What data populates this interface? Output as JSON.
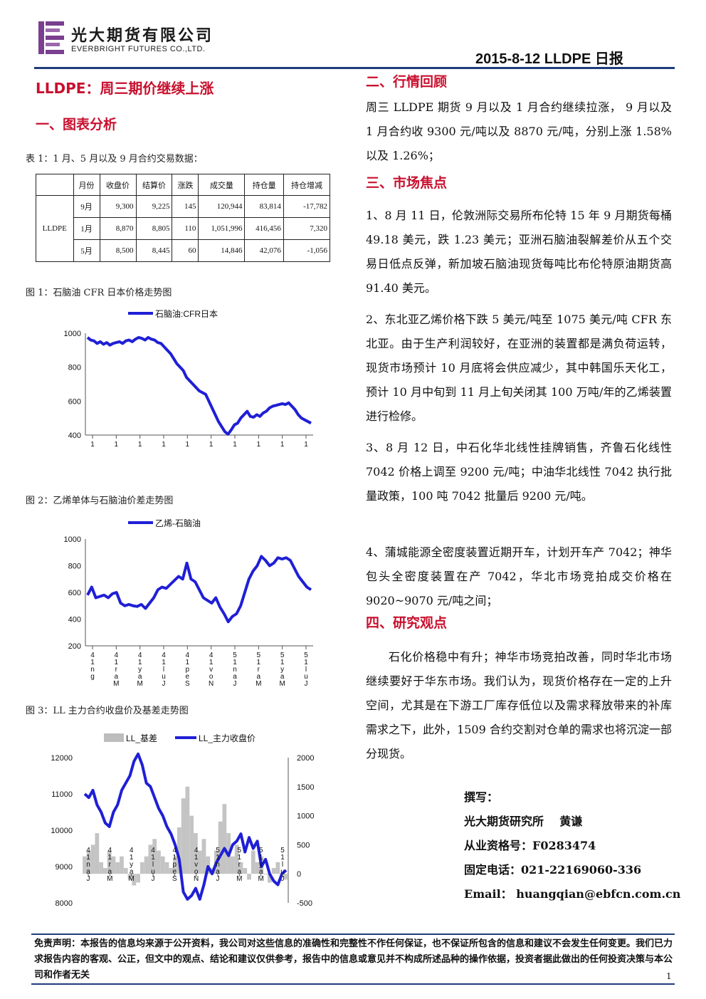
{
  "header": {
    "company_cn": "光大期货有限公司",
    "company_en": "EVERBRIGHT FUTURES CO.,LTD.",
    "report_date": "2015-8-12   LLDPE 日报"
  },
  "left": {
    "main_title": "LLDPE：周三期价继续上涨",
    "section1_title": "一、图表分析",
    "table_caption": "表 1：1 月、5 月以及 9 月合约交易数据：",
    "table": {
      "headers": [
        "",
        "月份",
        "收盘价",
        "结算价",
        "涨跌",
        "成交量",
        "持仓量",
        "持仓增减"
      ],
      "product": "LLDPE",
      "rows": [
        [
          "9月",
          "9,300",
          "9,225",
          "145",
          "120,944",
          "83,814",
          "-17,782"
        ],
        [
          "1月",
          "8,870",
          "8,805",
          "110",
          "1,051,996",
          "416,456",
          "7,320"
        ],
        [
          "5月",
          "8,500",
          "8,445",
          "60",
          "14,846",
          "42,076",
          "-1,056"
        ]
      ]
    },
    "fig1_caption": "图 1：石脑油 CFR 日本价格走势图",
    "fig2_caption": "图 2：乙烯单体与石脑油价差走势图",
    "fig3_caption": "图 3：LL 主力合约收盘价及基差走势图"
  },
  "right": {
    "sec2_title": "二、行情回顾",
    "sec2_text": "周三 LLDPE 期货 9 月以及 1 月合约继续拉涨， 9 月以及 1 月合约收 9300 元/吨以及 8870 元/吨，分别上涨 1.58%以及 1.26%；",
    "sec3_title": "三、市场焦点",
    "sec3_items": [
      "1、8 月 11 日，伦敦洲际交易所布伦特 15 年 9 月期货每桶 49.18 美元，跌 1.23 美元；亚洲石脑油裂解差价从五个交易日低点反弹，新加坡石脑油现货每吨比布伦特原油期货高 91.40 美元。",
      "2、东北亚乙烯价格下跌 5 美元/吨至 1075 美元/吨 CFR 东北亚。由于生产利润较好，在亚洲的装置都是满负荷运转，现货市场预计 10 月底将会供应减少，其中韩国乐天化工，预计 10 月中旬到 11 月上旬关闭其 100 万吨/年的乙烯装置进行检修。",
      "3、8 月 12 日，中石化华北线性挂牌销售，齐鲁石化线性 7042 价格上调至 9200 元/吨；中油华北线性 7042 执行批量政策，100 吨 7042 批量后 9200 元/吨。",
      "4、蒲城能源全密度装置近期开车，计划开车产 7042；神华包头全密度装置在产 7042，华北市场竞拍成交价格在 9020~9070 元/吨之间；"
    ],
    "sec4_title": "四、研究观点",
    "sec4_text": "石化价格稳中有升；神华市场竞拍改善，同时华北市场继续要好于华东市场。我们认为，现货价格存在一定的上升空间，尤其是在下游工厂库存低位以及需求释放带来的补库需求之下，此外，1509 合约交割对仓单的需求也将沉淀一部分现货。",
    "author_label": "撰写：",
    "author_line": "光大期货研究所    黄谦",
    "license": "从业资格号：F0283474",
    "phone": "固定电话：021-22169060-336",
    "email": "Email： huangqian@ebfcn.com.cn"
  },
  "footer": {
    "disclaimer": "免责声明：本报告的信息均来源于公开资料，我公司对这些信息的准确性和完整性不作任何保证，也不保证所包含的信息和建议不会发生任何变更。我们已力求报告内容的客观、公正，但文中的观点、结论和建议仅供参考，报告中的信息或意见并不构成所述品种的操作依据，投资者据此做出的任何投资决策与本公司和作者无关",
    "page": "1"
  },
  "chart_data": [
    {
      "type": "line",
      "legend": [
        "石脑油:CFR日本"
      ],
      "ylim": [
        400,
        1000
      ],
      "yticks": [
        400,
        600,
        800,
        1000
      ],
      "color": "#1f1fd6",
      "series": [
        {
          "name": "石脑油:CFR日本",
          "values": [
            975,
            960,
            955,
            940,
            950,
            935,
            945,
            930,
            940,
            945,
            950,
            940,
            955,
            960,
            950,
            965,
            975,
            970,
            960,
            975,
            965,
            960,
            945,
            940,
            920,
            900,
            880,
            850,
            820,
            800,
            780,
            740,
            720,
            700,
            680,
            660,
            650,
            640,
            600,
            560,
            520,
            480,
            450,
            420,
            405,
            430,
            460,
            470,
            500,
            520,
            540,
            510,
            505,
            520,
            510,
            530,
            540,
            560,
            570,
            575,
            580,
            585,
            580,
            590,
            570,
            550,
            520,
            500,
            490,
            480,
            470
          ]
        }
      ],
      "x_ticks_partial": [
        "1",
        "1",
        "1",
        "1",
        "1",
        "1",
        "1",
        "1",
        "1",
        "1"
      ]
    },
    {
      "type": "line",
      "legend": [
        "乙烯-石脑油"
      ],
      "ylim": [
        200,
        1000
      ],
      "yticks": [
        200,
        400,
        600,
        800,
        1000
      ],
      "color": "#1f1fd6",
      "series": [
        {
          "name": "乙烯-石脑油",
          "values": [
            580,
            640,
            560,
            570,
            580,
            560,
            590,
            600,
            520,
            500,
            510,
            500,
            495,
            510,
            480,
            520,
            560,
            620,
            640,
            630,
            660,
            690,
            720,
            700,
            820,
            700,
            680,
            620,
            560,
            540,
            520,
            560,
            490,
            440,
            380,
            420,
            440,
            500,
            600,
            700,
            760,
            800,
            870,
            840,
            800,
            820,
            860,
            850,
            860,
            840,
            780,
            720,
            680,
            640,
            620
          ]
        }
      ],
      "x_ticks": [
        "4 1 n g",
        "4 1 r a M",
        "4 1 y a M",
        "4 1 l u J",
        "4 1 p e S",
        "4 1 v o N",
        "5 1 n a J",
        "5 1 r a M",
        "5 1 y a M",
        "5 1 l u J"
      ]
    },
    {
      "type": "line+area",
      "legend": [
        "LL_基差",
        "LL_主力收盘价"
      ],
      "ylim_left": [
        8000,
        12000
      ],
      "yticks_left": [
        8000,
        9000,
        10000,
        11000,
        12000
      ],
      "ylim_right": [
        -500,
        2000
      ],
      "yticks_right": [
        -500,
        0,
        500,
        1000,
        1500,
        2000
      ],
      "series": [
        {
          "name": "LL_主力收盘价",
          "values": [
            11000,
            10900,
            11100,
            10700,
            10500,
            10200,
            10100,
            10500,
            10700,
            11100,
            11300,
            11500,
            11900,
            12100,
            11800,
            11300,
            11200,
            10900,
            10600,
            10400,
            10100,
            9900,
            9600,
            9200,
            8300,
            8100,
            8200,
            8400,
            8100,
            8500,
            9000,
            8800,
            9100,
            9300,
            9500,
            9300,
            9600,
            9700,
            9900,
            9400,
            9800,
            9500,
            9700,
            9000,
            9200,
            8800,
            8600,
            8500,
            8800,
            8900
          ]
        },
        {
          "name": "LL_基差",
          "values": [
            300,
            400,
            500,
            700,
            200,
            100,
            400,
            300,
            200,
            300,
            100,
            -100,
            -200,
            -150,
            200,
            300,
            500,
            600,
            400,
            300,
            200,
            100,
            300,
            800,
            1300,
            1500,
            1000,
            700,
            400,
            600,
            300,
            100,
            400,
            900,
            1200,
            700,
            300,
            500,
            200,
            100,
            -100,
            400,
            200,
            300,
            0,
            -150,
            100,
            200,
            0,
            -100
          ]
        }
      ],
      "x_ticks": [
        "4 1 n a J",
        "4 1 r a M",
        "4 1 y a M",
        "4 1 l u J",
        "4 1 p e S",
        "4 1 v o N",
        "5 1 n a J",
        "5 1 r a M",
        "5 1 y a M",
        "5 1 l u J"
      ]
    }
  ]
}
